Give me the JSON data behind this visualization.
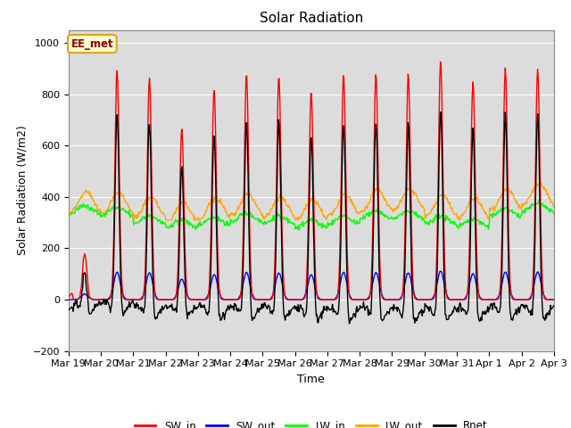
{
  "title": "Solar Radiation",
  "ylabel": "Solar Radiation (W/m2)",
  "xlabel": "Time",
  "ylim": [
    -200,
    1050
  ],
  "yticks": [
    -200,
    0,
    200,
    400,
    600,
    800,
    1000
  ],
  "annotation_text": "EE_met",
  "annotation_color": "#8B0000",
  "annotation_bg": "#FFFACD",
  "annotation_border": "#DAA520",
  "bg_color": "#DCDCDC",
  "title_fontsize": 11,
  "label_fontsize": 9,
  "tick_fontsize": 8,
  "line_width": 1.0,
  "n_days": 15,
  "dt_hours": 0.5,
  "SW_in_peaks": [
    180,
    890,
    870,
    660,
    820,
    880,
    870,
    810,
    880,
    880,
    880,
    930,
    850,
    900,
    900
  ],
  "tick_labels": [
    "Mar 19",
    "Mar 20",
    "Mar 21",
    "Mar 22",
    "Mar 23",
    "Mar 24",
    "Mar 25",
    "Mar 26",
    "Mar 27",
    "Mar 28",
    "Mar 29",
    "Mar 30",
    "Mar 31",
    "Apr 1",
    "Apr 2",
    "Apr 3"
  ]
}
